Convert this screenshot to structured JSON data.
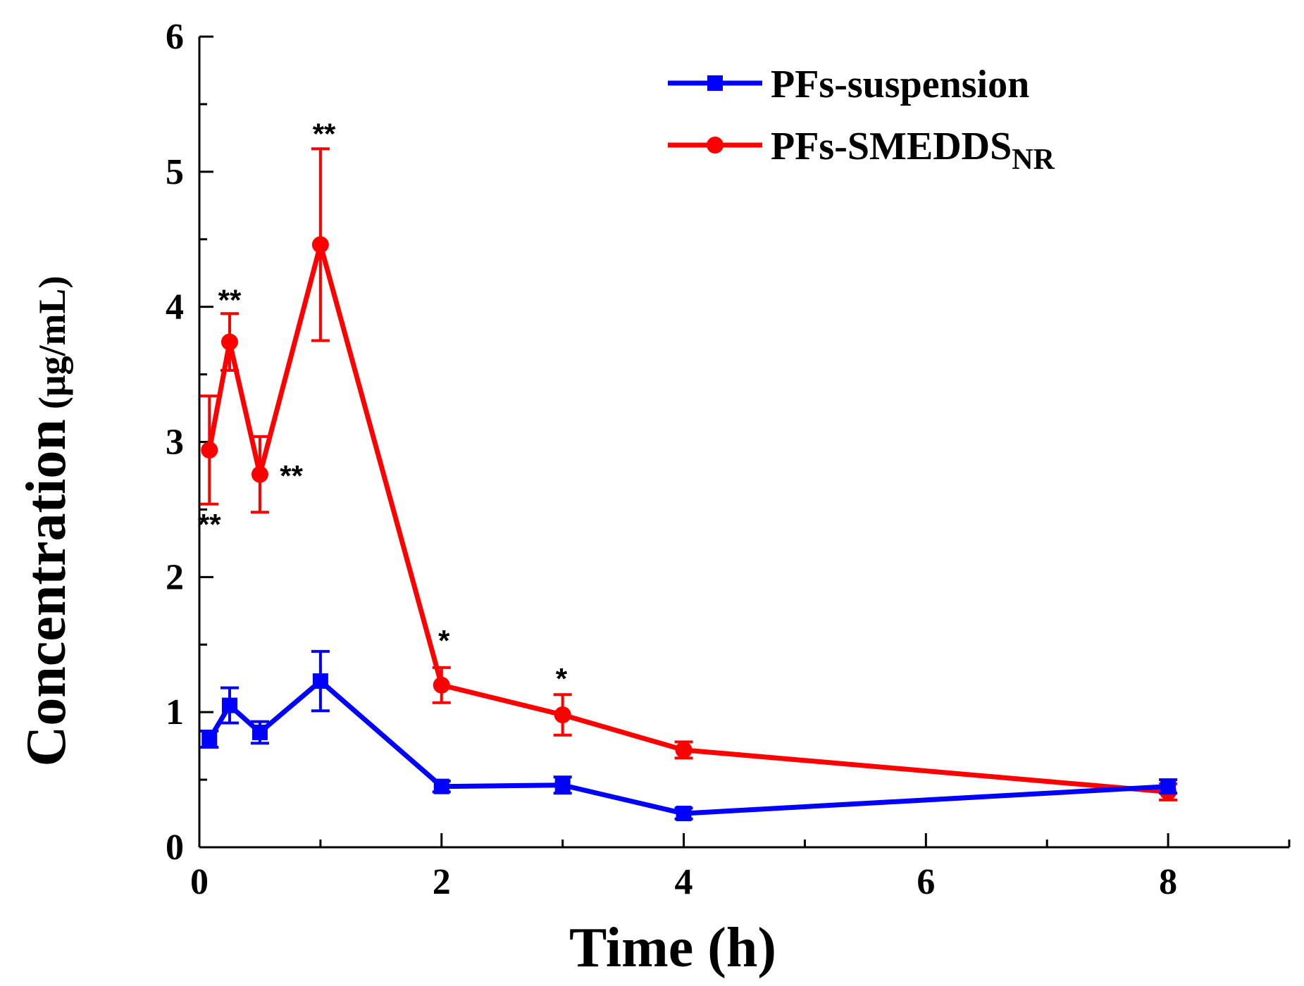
{
  "chart_data": {
    "type": "line",
    "title": "",
    "xlabel": "Time (h)",
    "ylabel": "Concentration",
    "ylabel_unit": "(μg/mL)",
    "xlim": [
      0,
      9
    ],
    "ylim": [
      0,
      6
    ],
    "xticks": [
      0,
      2,
      4,
      6,
      8
    ],
    "yticks": [
      0,
      1,
      2,
      3,
      4,
      5,
      6
    ],
    "grid": false,
    "legend_position": "top-right",
    "series": [
      {
        "name": "PFs-suspension",
        "color": "#0000ff",
        "marker": "square",
        "x": [
          0.083,
          0.25,
          0.5,
          1,
          2,
          3,
          4,
          8
        ],
        "y": [
          0.8,
          1.05,
          0.85,
          1.23,
          0.45,
          0.46,
          0.25,
          0.45
        ],
        "err": [
          0.06,
          0.13,
          0.08,
          0.22,
          0.04,
          0.06,
          0.04,
          0.05
        ]
      },
      {
        "name": "PFs-SMEDDS",
        "name_subscript": "NR",
        "color": "#ff0000",
        "marker": "circle",
        "x": [
          0.083,
          0.25,
          0.5,
          1,
          2,
          3,
          4,
          8
        ],
        "y": [
          2.94,
          3.74,
          2.76,
          4.46,
          1.2,
          0.98,
          0.72,
          0.41
        ],
        "err": [
          0.4,
          0.21,
          0.28,
          0.71,
          0.13,
          0.15,
          0.06,
          0.06
        ]
      }
    ],
    "annotations": [
      {
        "text": "**",
        "x": 0.083,
        "y": 2.46
      },
      {
        "text": "**",
        "x": 0.25,
        "y": 4.12
      },
      {
        "text": "**",
        "x": 0.76,
        "y": 2.82
      },
      {
        "text": "**",
        "x": 1.03,
        "y": 5.35
      },
      {
        "text": "*",
        "x": 2.02,
        "y": 1.6
      },
      {
        "text": "*",
        "x": 2.99,
        "y": 1.32
      }
    ]
  }
}
